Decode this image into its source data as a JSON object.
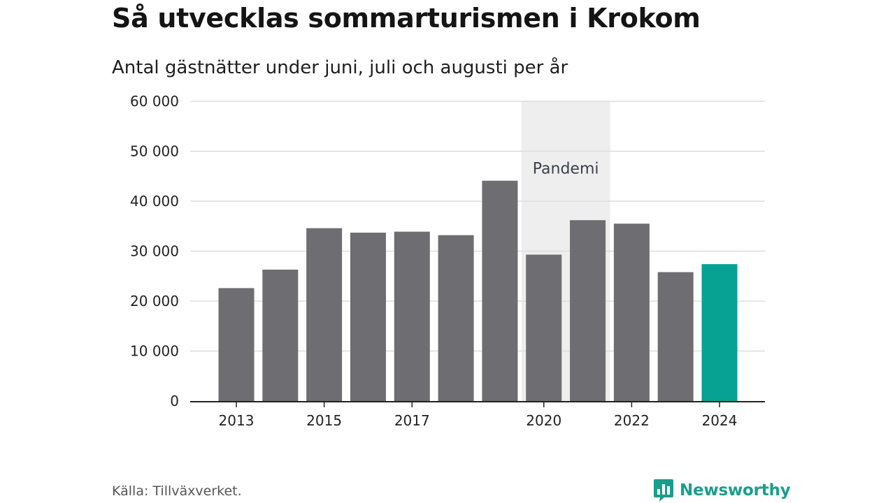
{
  "title": "Så utvecklas sommarturismen i Krokom",
  "subtitle": "Antal gästnätter under juni, juli och augusti per år",
  "source": "Källa: Tillväxverket.",
  "brand": {
    "name": "Newsworthy",
    "icon": "newsworthy-logo-icon"
  },
  "colors": {
    "bar": "#6d6d72",
    "highlight": "#07a294",
    "band": "#eeeeee",
    "grid": "#dddddd",
    "axis": "#222222"
  },
  "chart_data": {
    "type": "bar",
    "categories": [
      "2013",
      "2014",
      "2015",
      "2016",
      "2017",
      "2018",
      "2019",
      "2020",
      "2021",
      "2022",
      "2023",
      "2024"
    ],
    "values": [
      22600,
      26300,
      34600,
      33700,
      33900,
      33200,
      44100,
      29300,
      36200,
      35500,
      25800,
      27400
    ],
    "x_tick_labels": [
      "2013",
      "2015",
      "2017",
      "2020",
      "2022",
      "2024"
    ],
    "y_ticks": [
      0,
      10000,
      20000,
      30000,
      40000,
      50000,
      60000
    ],
    "y_tick_labels": [
      "0",
      "10 000",
      "20 000",
      "30 000",
      "40 000",
      "50 000",
      "60 000"
    ],
    "ylim": [
      0,
      60000
    ],
    "xlabel": "",
    "ylabel": "",
    "grid": true,
    "highlight_category": "2024",
    "annotation": {
      "label": "Pandemi",
      "from": "2020",
      "to": "2021"
    }
  }
}
